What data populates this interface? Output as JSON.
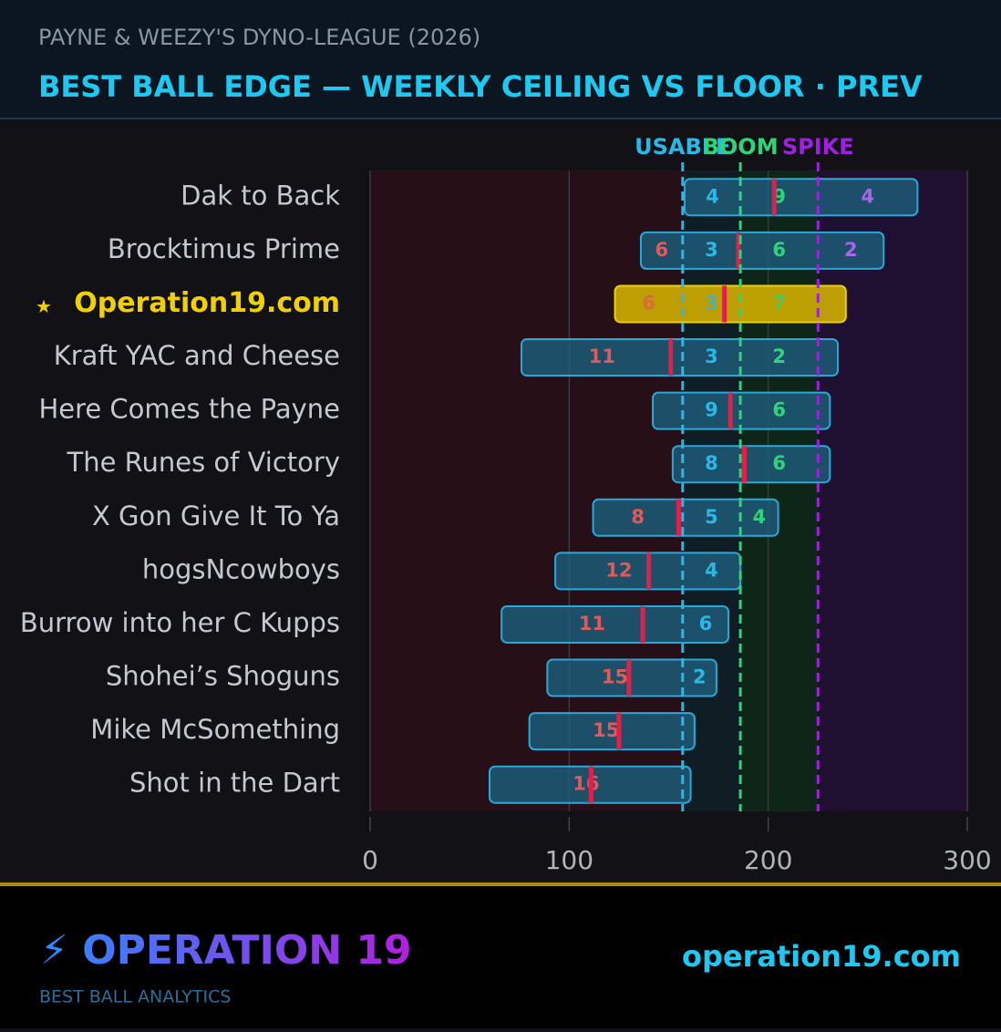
{
  "header": {
    "league": "PAYNE & WEEZY'S DYNO-LEAGUE (2026)",
    "title": "BEST BALL EDGE — WEEKLY CEILING VS FLOOR · PREV"
  },
  "chart_data": {
    "type": "range_bar",
    "categories": [
      "Dak to Back",
      "Brocktimus Prime",
      "Operation19.com",
      "Kraft YAC and Cheese",
      "Here Comes the Payne",
      "The Runes of Victory",
      "X Gon Give It To Ya",
      "hogsNcowboys",
      "Burrow into her C Kupps",
      "Shohei’s Shoguns",
      "Mike McSomething",
      "Shot in the Dart"
    ],
    "highlight": 2,
    "highlight_marker": "★",
    "floor": [
      158,
      136,
      123,
      76,
      142,
      152,
      112,
      93,
      66,
      89,
      80,
      60
    ],
    "ceiling": [
      275,
      258,
      239,
      235,
      231,
      231,
      205,
      186,
      180,
      174,
      163,
      161
    ],
    "median": [
      203,
      185,
      178,
      151,
      181,
      188,
      155,
      140,
      137,
      130,
      125,
      111
    ],
    "weeks": [
      {
        "color": "#e05a5a",
        "values": [
          null,
          6,
          6,
          11,
          null,
          null,
          8,
          12,
          11,
          15,
          15,
          16
        ]
      },
      {
        "color": "#2bb8e6",
        "values": [
          4,
          3,
          3,
          3,
          9,
          8,
          5,
          4,
          6,
          2,
          null,
          null
        ]
      },
      {
        "color": "#2ed47a",
        "values": [
          9,
          6,
          7,
          2,
          6,
          6,
          4,
          null,
          null,
          null,
          null,
          null
        ]
      },
      {
        "color": "#a765e8",
        "values": [
          4,
          2,
          null,
          null,
          null,
          null,
          null,
          null,
          null,
          null,
          null,
          null
        ]
      }
    ],
    "thresholds": [
      {
        "label": "USABLE",
        "value": 157,
        "color": "#2bb8e6"
      },
      {
        "label": "BOOM",
        "value": 186,
        "color": "#2ed47a"
      },
      {
        "label": "SPIKE",
        "value": 225,
        "color": "#a020e0"
      }
    ],
    "zone_colors": [
      "#260f17",
      "#0f1d24",
      "#0e2618",
      "#1f0f30"
    ],
    "bar_color": "#1d5a78",
    "bar_edge": "#2aa8d8",
    "highlight_color": "#c7a600",
    "highlight_edge": "#f0d000",
    "median_color": "#e0204a",
    "xlim": [
      0,
      300
    ],
    "xticks": [
      0,
      100,
      200,
      300
    ],
    "grid": true
  },
  "footer": {
    "brand": "⚡ OPERATION 19",
    "tagline": "BEST BALL ANALYTICS",
    "url": "operation19.com"
  }
}
